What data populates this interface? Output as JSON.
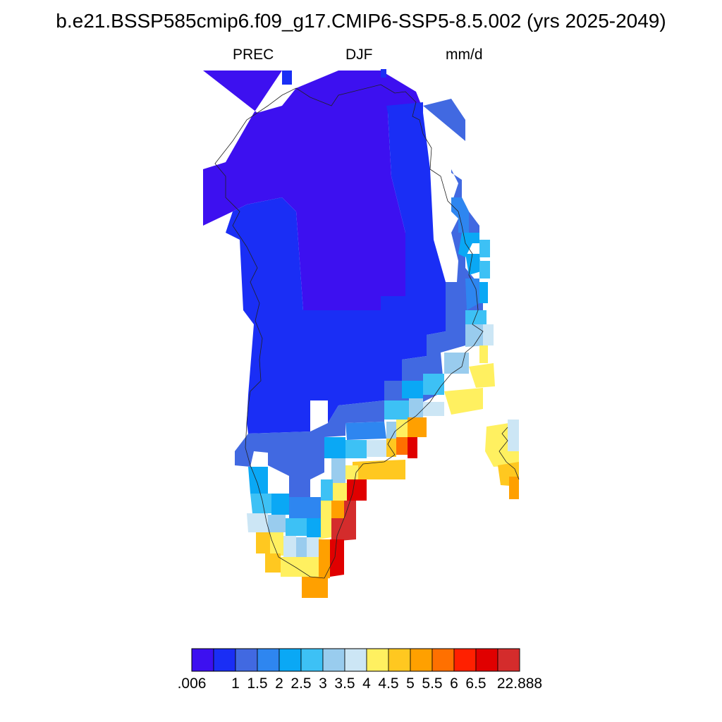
{
  "title": "b.e21.BSSP585cmip6.f09_g17.CMIP6-SSP5-8.5.002 (yrs 2025-2049)",
  "variable": "PREC",
  "season": "DJF",
  "units": "mm/d",
  "colorbar": {
    "colors": [
      "#3d10f0",
      "#1a2ef5",
      "#4169e1",
      "#2e86f0",
      "#0aa8f5",
      "#3dc1f5",
      "#99ccee",
      "#cce6f5",
      "#fff060",
      "#ffc820",
      "#ffa000",
      "#ff7000",
      "#ff2000",
      "#e00000",
      "#d42c2c"
    ],
    "labels": [
      ".006",
      "1",
      "1.5",
      "2",
      "2.5",
      "3",
      "3.5",
      "4",
      "4.5",
      "5",
      "5.5",
      "6",
      "6.5",
      "22.888"
    ]
  }
}
